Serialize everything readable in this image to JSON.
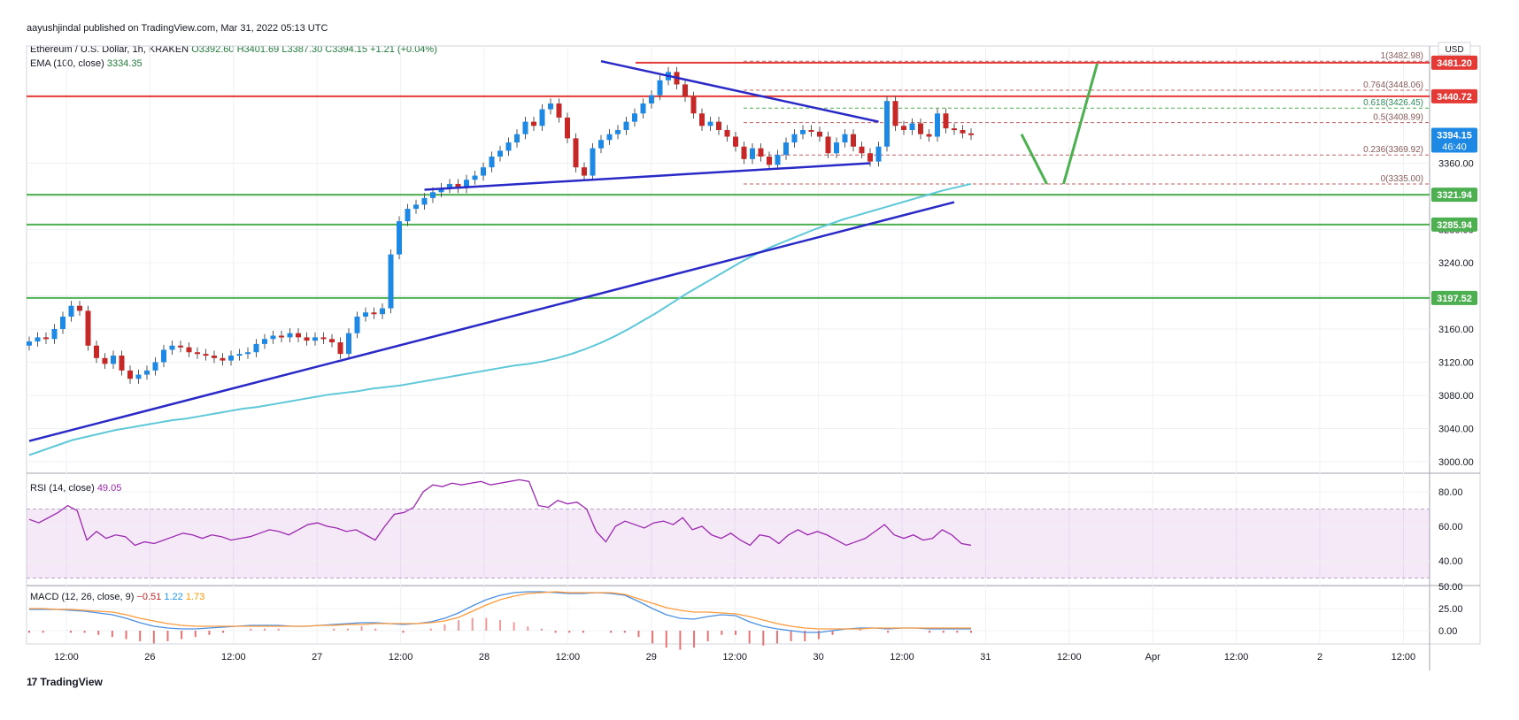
{
  "header": {
    "published": "aayushjindal published on TradingView.com, Mar 31, 2022 05:13 UTC",
    "symbol": "Ethereum / U.S. Dollar, 1h, KRAKEN",
    "ohlc": "O3392.60 H3401.69 L3387.30 C3394.15 +1.21 (+0.04%)",
    "ema_label": "EMA (100, close)",
    "ema_value": "3334.35",
    "currency": "USD"
  },
  "rsi": {
    "label": "RSI (14, close)",
    "value": "49.05",
    "levels": [
      "80.00",
      "60.00",
      "40.00"
    ]
  },
  "macd": {
    "label": "MACD (12, 26, close, 9)",
    "hist": "−0.51",
    "macd": "1.22",
    "signal": "1.73",
    "levels": [
      "50.00",
      "25.00",
      "0.00"
    ]
  },
  "footer": {
    "brand": "TradingView"
  },
  "colors": {
    "up": "#1e88e5",
    "down": "#c62828",
    "ema": "#5ec8d8",
    "trend": "#2929c7",
    "resistance": "#e53935",
    "support": "#4caf50",
    "rsi": "#9c27b0",
    "macd": "#4a90e2",
    "signal": "#ff9a3c"
  },
  "chart_data": {
    "type": "line",
    "title": "Ethereum / U.S. Dollar, 1h, KRAKEN",
    "ylim": [
      2985,
      3500
    ],
    "y_ticks": [
      "3000.00",
      "3040.00",
      "3080.00",
      "3120.00",
      "3160.00",
      "3200.00",
      "3240.00",
      "3280.00",
      "3320.00",
      "3360.00"
    ],
    "x_ticks": [
      "12:00",
      "26",
      "12:00",
      "27",
      "12:00",
      "28",
      "12:00",
      "29",
      "12:00",
      "30",
      "12:00",
      "31",
      "12:00",
      "Apr",
      "12:00",
      "2",
      "12:00"
    ],
    "price_labels": [
      {
        "text": "3481.20",
        "value": 3481.2,
        "kind": "resistance"
      },
      {
        "text": "3440.72",
        "value": 3440.72,
        "kind": "resistance"
      },
      {
        "text": "3394.15",
        "value": 3394.15,
        "kind": "last",
        "sub": "46:40"
      },
      {
        "text": "3321.94",
        "value": 3321.94,
        "kind": "support"
      },
      {
        "text": "3285.94",
        "value": 3285.94,
        "kind": "support"
      },
      {
        "text": "3197.52",
        "value": 3197.52,
        "kind": "support"
      }
    ],
    "fib_levels": [
      {
        "label": "1(3482.98)",
        "value": 3482.98
      },
      {
        "label": "0.764(3448.06)",
        "value": 3448.06
      },
      {
        "label": "0.618(3426.45)",
        "value": 3426.45
      },
      {
        "label": "0.5(3408.99)",
        "value": 3408.99
      },
      {
        "label": "0.236(3369.92)",
        "value": 3369.92
      },
      {
        "label": "0(3335.00)",
        "value": 3335.0
      }
    ],
    "close_series": [
      3145,
      3150,
      3148,
      3160,
      3175,
      3188,
      3182,
      3140,
      3125,
      3118,
      3128,
      3110,
      3100,
      3105,
      3110,
      3120,
      3135,
      3140,
      3138,
      3132,
      3130,
      3128,
      3125,
      3122,
      3128,
      3130,
      3132,
      3142,
      3148,
      3152,
      3150,
      3155,
      3150,
      3146,
      3150,
      3148,
      3144,
      3130,
      3155,
      3175,
      3180,
      3178,
      3185,
      3250,
      3290,
      3305,
      3310,
      3318,
      3325,
      3330,
      3335,
      3330,
      3340,
      3345,
      3355,
      3368,
      3375,
      3385,
      3395,
      3410,
      3405,
      3425,
      3432,
      3415,
      3390,
      3355,
      3345,
      3378,
      3388,
      3395,
      3400,
      3410,
      3420,
      3432,
      3442,
      3460,
      3470,
      3455,
      3440,
      3420,
      3405,
      3410,
      3400,
      3392,
      3380,
      3365,
      3378,
      3368,
      3358,
      3370,
      3385,
      3395,
      3400,
      3398,
      3392,
      3372,
      3385,
      3395,
      3380,
      3372,
      3362,
      3380,
      3435,
      3405,
      3400,
      3408,
      3395,
      3392,
      3420,
      3402,
      3400,
      3396,
      3394
    ],
    "ema_series": [
      3008,
      3014,
      3020,
      3026,
      3030,
      3034,
      3038,
      3041,
      3044,
      3047,
      3050,
      3052,
      3055,
      3058,
      3061,
      3064,
      3066,
      3069,
      3072,
      3075,
      3078,
      3081,
      3083,
      3085,
      3088,
      3090,
      3092,
      3095,
      3098,
      3101,
      3104,
      3107,
      3110,
      3113,
      3116,
      3118,
      3121,
      3125,
      3130,
      3136,
      3143,
      3151,
      3160,
      3170,
      3180,
      3191,
      3202,
      3212,
      3222,
      3232,
      3242,
      3251,
      3259,
      3266,
      3273,
      3280,
      3286,
      3292,
      3297,
      3302,
      3307,
      3312,
      3317,
      3322,
      3327,
      3331,
      3335
    ],
    "drawings": [
      {
        "name": "major-rising-trendline",
        "from": [
          0,
          3025
        ],
        "to": [
          110,
          3313
        ]
      },
      {
        "name": "rising-trendline",
        "from": [
          47,
          3328
        ],
        "to": [
          100,
          3360
        ]
      },
      {
        "name": "descending-trendline",
        "from": [
          68,
          3483
        ],
        "to": [
          101,
          3410
        ]
      },
      {
        "name": "resistance-line-1",
        "value": 3440.72
      },
      {
        "name": "resistance-line-2",
        "value": 3481.2
      },
      {
        "name": "support-line-1",
        "value": 3321.94
      },
      {
        "name": "support-line-2",
        "value": 3285.94
      },
      {
        "name": "support-line-3",
        "value": 3197.52
      }
    ],
    "rsi_series": [
      64,
      62,
      65,
      68,
      72,
      69,
      52,
      57,
      53,
      55,
      54,
      49,
      51,
      50,
      52,
      54,
      56,
      55,
      53,
      55,
      54,
      52,
      53,
      54,
      56,
      58,
      57,
      55,
      58,
      61,
      62,
      60,
      59,
      57,
      58,
      55,
      52,
      60,
      67,
      68,
      71,
      80,
      84,
      83,
      85,
      84,
      85,
      86,
      84,
      85,
      86,
      87,
      86,
      72,
      71,
      75,
      73,
      74,
      70,
      57,
      51,
      60,
      63,
      61,
      59,
      62,
      63,
      61,
      65,
      58,
      60,
      55,
      53,
      56,
      52,
      49,
      55,
      54,
      50,
      55,
      58,
      55,
      57,
      55,
      52,
      49,
      51,
      53,
      57,
      61,
      55,
      53,
      55,
      52,
      53,
      58,
      55,
      50,
      49
    ],
    "macd_series": [
      24,
      24,
      24,
      23,
      22,
      20,
      18,
      14,
      9,
      5,
      3,
      2,
      2,
      3,
      4,
      5,
      6,
      6,
      6,
      5,
      5,
      6,
      7,
      8,
      9,
      9,
      8,
      7,
      8,
      10,
      14,
      20,
      28,
      35,
      40,
      43,
      44,
      44,
      43,
      42,
      42,
      43,
      42,
      40,
      33,
      25,
      18,
      14,
      13,
      16,
      18,
      17,
      10,
      5,
      2,
      0,
      -2,
      -2,
      0,
      2,
      3,
      3,
      2,
      3,
      3,
      2,
      2,
      2,
      2
    ],
    "signal_series": [
      25,
      25,
      24,
      24,
      23,
      22,
      21,
      18,
      14,
      11,
      8,
      6,
      5,
      5,
      5,
      5,
      5,
      5,
      5,
      5,
      5,
      6,
      6,
      7,
      7,
      8,
      8,
      8,
      8,
      9,
      11,
      15,
      22,
      29,
      35,
      39,
      42,
      43,
      44,
      43,
      43,
      43,
      43,
      41,
      36,
      31,
      26,
      23,
      21,
      21,
      20,
      19,
      16,
      12,
      8,
      5,
      3,
      2,
      2,
      2,
      2,
      3,
      3,
      3,
      3,
      3,
      3,
      3,
      3
    ]
  }
}
